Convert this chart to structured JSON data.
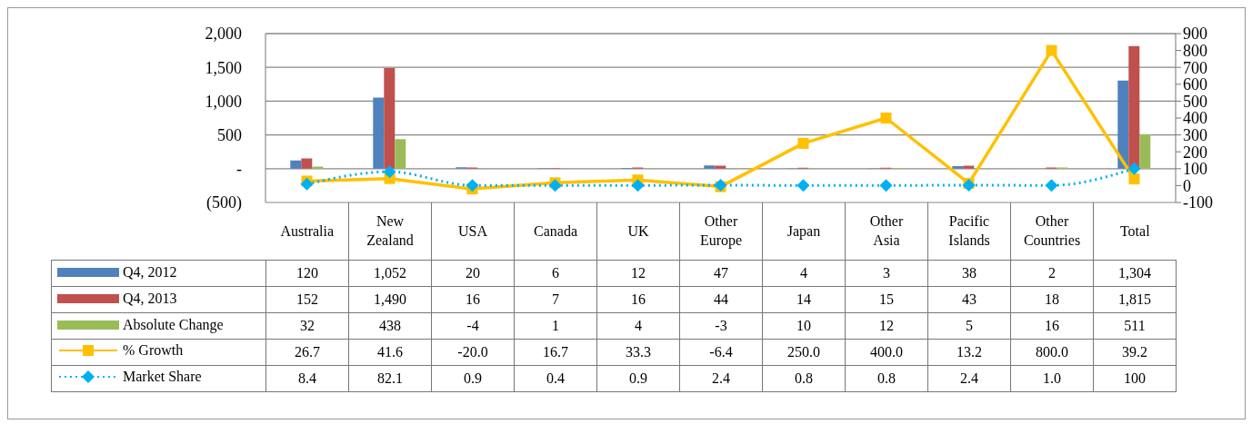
{
  "chart_data": {
    "type": "bar",
    "categories": [
      "Australia",
      "New Zealand",
      "USA",
      "Canada",
      "UK",
      "Other Europe",
      "Japan",
      "Other Asia",
      "Pacific Islands",
      "Other Countries",
      "Total"
    ],
    "series": [
      {
        "name": "Q4, 2012",
        "color": "#4f81bd",
        "values": [
          120,
          1052,
          20,
          6,
          12,
          47,
          4,
          3,
          38,
          2,
          1304
        ],
        "value_labels": [
          "120",
          "1,052",
          "20",
          "6",
          "12",
          "47",
          "4",
          "3",
          "38",
          "2",
          "1,304"
        ]
      },
      {
        "name": "Q4, 2013",
        "color": "#c0504d",
        "values": [
          152,
          1490,
          16,
          7,
          16,
          44,
          14,
          15,
          43,
          18,
          1815
        ],
        "value_labels": [
          "152",
          "1,490",
          "16",
          "7",
          "16",
          "44",
          "14",
          "15",
          "43",
          "18",
          "1,815"
        ]
      },
      {
        "name": "Absolute Change",
        "color": "#9bbb59",
        "values": [
          32,
          438,
          -4,
          1,
          4,
          -3,
          10,
          12,
          5,
          16,
          511
        ],
        "value_labels": [
          "32",
          "438",
          "-4",
          "1",
          "4",
          "-3",
          "10",
          "12",
          "5",
          "16",
          "511"
        ]
      },
      {
        "name": "% Growth",
        "type": "line",
        "axis": "y2",
        "color": "#ffc000",
        "marker": "square",
        "line_style": "solid",
        "values": [
          26.7,
          41.6,
          -20.0,
          16.7,
          33.3,
          -6.4,
          250.0,
          400.0,
          13.2,
          800.0,
          39.2
        ],
        "value_labels": [
          "26.7",
          "41.6",
          "-20.0",
          "16.7",
          "33.3",
          "-6.4",
          "250.0",
          "400.0",
          "13.2",
          "800.0",
          "39.2"
        ]
      },
      {
        "name": "Market Share",
        "type": "line",
        "axis": "y2",
        "color": "#00b0f0",
        "marker": "diamond",
        "line_style": "dotted",
        "values": [
          8.4,
          82.1,
          0.9,
          0.4,
          0.9,
          2.4,
          0.8,
          0.8,
          2.4,
          1.0,
          100
        ],
        "value_labels": [
          "8.4",
          "82.1",
          "0.9",
          "0.4",
          "0.9",
          "2.4",
          "0.8",
          "0.8",
          "2.4",
          "1.0",
          "100"
        ]
      }
    ],
    "ylim": [
      -500,
      2000
    ],
    "yticks": [
      {
        "value": -500,
        "label": "(500)"
      },
      {
        "value": 0,
        "label": "-"
      },
      {
        "value": 500,
        "label": "500"
      },
      {
        "value": 1000,
        "label": "1,000"
      },
      {
        "value": 1500,
        "label": "1,500"
      },
      {
        "value": 2000,
        "label": "2,000"
      }
    ],
    "y2lim": [
      -100,
      900
    ],
    "y2ticks": [
      -100,
      0,
      100,
      200,
      300,
      400,
      500,
      600,
      700,
      800,
      900
    ],
    "grid": "y",
    "legend": "bottom left"
  }
}
